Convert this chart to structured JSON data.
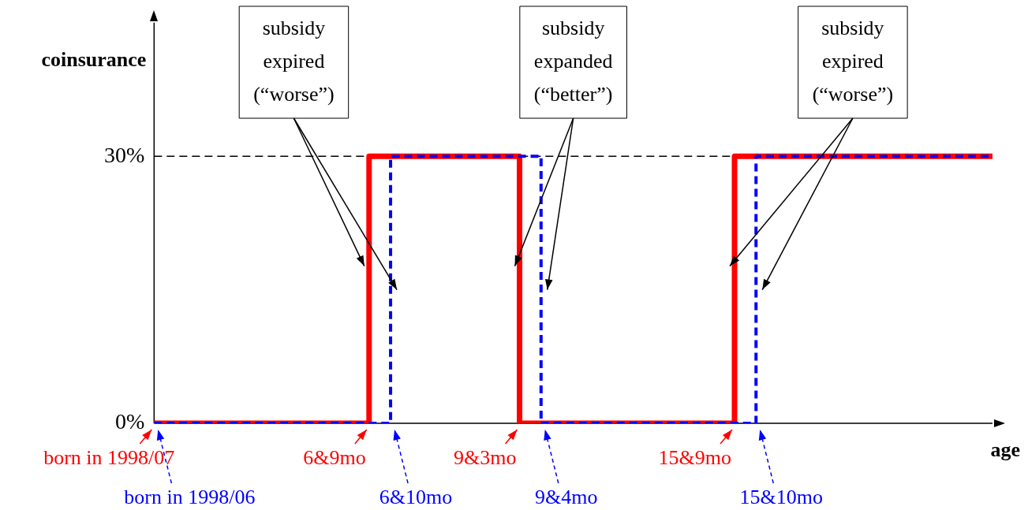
{
  "chart_data": {
    "type": "step",
    "ylabel": "coinsurance",
    "xlabel": "age",
    "categories": [
      null,
      null,
      null,
      null,
      null,
      null,
      null,
      null,
      null,
      null,
      null,
      null,
      null,
      null,
      null,
      null,
      null,
      null,
      null,
      null,
      null,
      null,
      null,
      null,
      null,
      null,
      null,
      null,
      null,
      null,
      null,
      null,
      null,
      null,
      null,
      null,
      null,
      null,
      null,
      null
    ],
    "ylim": [
      0,
      45
    ],
    "yticks": [
      {
        "value": 0,
        "label": "0%"
      },
      {
        "value": 30,
        "label": "30%"
      }
    ],
    "tick_labels": "y",
    "legend": "bottom left",
    "series": [
      {
        "name": "born in 1998/07",
        "color": "#ff0000",
        "line_style": "solid",
        "values": [
          0,
          0,
          0,
          0,
          0,
          0,
          0,
          0,
          0,
          0,
          30,
          30,
          30,
          30,
          30,
          30,
          30,
          0,
          0,
          0,
          0,
          0,
          0,
          0,
          0,
          0,
          0,
          30,
          30,
          30,
          30,
          30,
          30,
          30,
          30,
          30,
          30,
          30,
          30,
          30
        ]
      },
      {
        "name": "born in 1998/06",
        "color": "#0000ff",
        "line_style": "dashed",
        "values": [
          0,
          0,
          0,
          0,
          0,
          0,
          0,
          0,
          0,
          0,
          0,
          30,
          30,
          30,
          30,
          30,
          30,
          30,
          0,
          0,
          0,
          0,
          0,
          0,
          0,
          0,
          0,
          0,
          30,
          30,
          30,
          30,
          30,
          30,
          30,
          30,
          30,
          30,
          30,
          30
        ]
      }
    ],
    "ref_lines": [
      {
        "axis": "y",
        "value": 30,
        "color": "#000000",
        "line_style": "dashed"
      }
    ],
    "annotations": [
      "subsidy\nexpired\n(“worse”)",
      "subsidy\nexpanded\n(“better”)",
      "subsidy\nexpired\n(“worse”)",
      "6&9mo",
      "6&10mo",
      "9&3mo",
      "9&4mo",
      "15&9mo",
      "15&10mo"
    ]
  }
}
